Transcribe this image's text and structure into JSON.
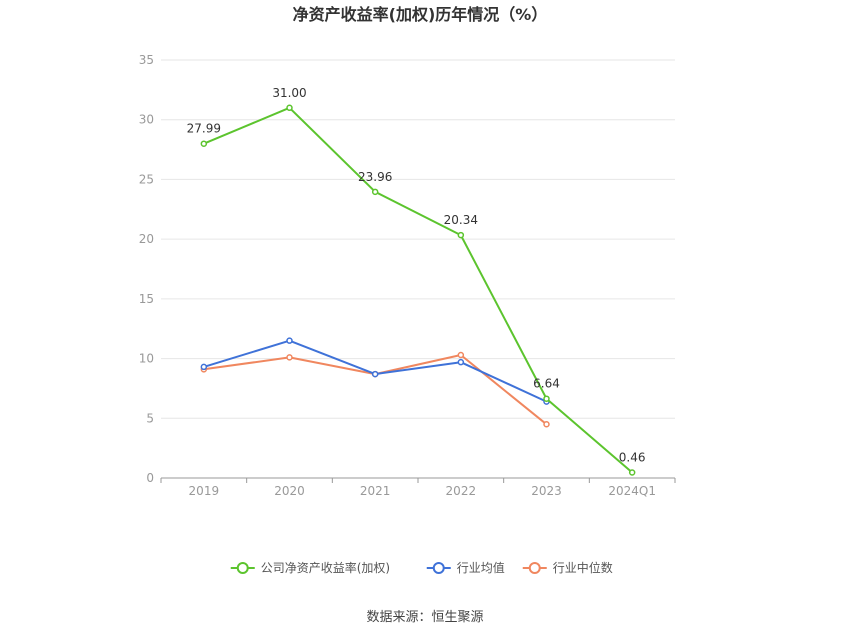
{
  "chart_data": {
    "type": "line",
    "title": "净资产收益率(加权)历年情况（%）",
    "categories": [
      "2019",
      "2020",
      "2021",
      "2022",
      "2023",
      "2024Q1"
    ],
    "ylim": [
      0,
      35
    ],
    "yticks": [
      0,
      5,
      10,
      15,
      20,
      25,
      30,
      35
    ],
    "grid": true,
    "legend_position": "bottom",
    "series": [
      {
        "name": "公司净资产收益率(加权)",
        "color": "#5cc42e",
        "values": [
          27.99,
          31.0,
          23.96,
          20.34,
          6.64,
          0.46
        ],
        "labels": [
          "27.99",
          "31.00",
          "23.96",
          "20.34",
          "6.64",
          "0.46"
        ]
      },
      {
        "name": "行业均值",
        "color": "#3f72d8",
        "values": [
          9.3,
          11.5,
          8.7,
          9.7,
          6.4,
          null
        ]
      },
      {
        "name": "行业中位数",
        "color": "#f0875f",
        "values": [
          9.1,
          10.1,
          8.7,
          10.3,
          4.5,
          null
        ]
      }
    ]
  },
  "source": "数据来源：恒生聚源"
}
